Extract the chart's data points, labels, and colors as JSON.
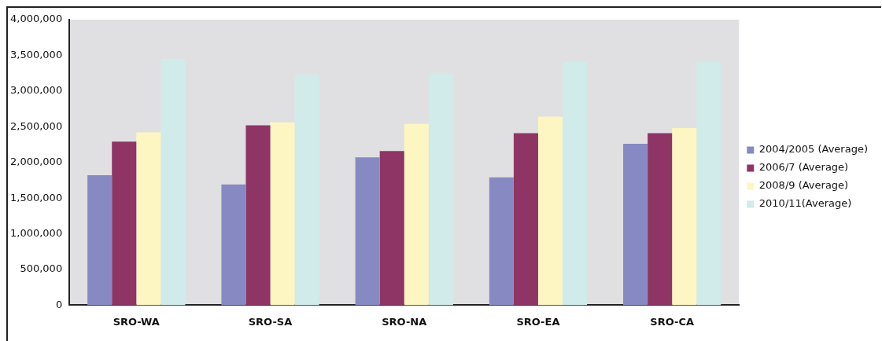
{
  "chart_data": {
    "type": "bar",
    "categories": [
      "SRO-WA",
      "SRO-SA",
      "SRO-NA",
      "SRO-EA",
      "SRO-CA"
    ],
    "series": [
      {
        "name": "2004/2005 (Average)",
        "color": "#8789c2",
        "values": [
          1820000,
          1690000,
          2070000,
          1790000,
          2260000
        ]
      },
      {
        "name": "2006/7 (Average)",
        "color": "#8e3565",
        "values": [
          2290000,
          2520000,
          2160000,
          2410000,
          2410000
        ]
      },
      {
        "name": "2008/9 (Average)",
        "color": "#fdf6c2",
        "values": [
          2420000,
          2560000,
          2540000,
          2640000,
          2480000
        ]
      },
      {
        "name": "2010/11(Average)",
        "color": "#d1eaea",
        "values": [
          3450000,
          3230000,
          3250000,
          3410000,
          3410000
        ]
      }
    ],
    "ylim": [
      0,
      4000000
    ],
    "yticks": [
      {
        "value": 0,
        "label": "0"
      },
      {
        "value": 500000,
        "label": "500,000"
      },
      {
        "value": 1000000,
        "label": "1,000,000"
      },
      {
        "value": 1500000,
        "label": "1,500,000"
      },
      {
        "value": 2000000,
        "label": "2,000,000"
      },
      {
        "value": 2500000,
        "label": "2,500,000"
      },
      {
        "value": 3000000,
        "label": "3,000,000"
      },
      {
        "value": 3500000,
        "label": "3,500,000"
      },
      {
        "value": 4000000,
        "label": "4,000,000"
      }
    ],
    "grid": false,
    "legend": "right"
  }
}
